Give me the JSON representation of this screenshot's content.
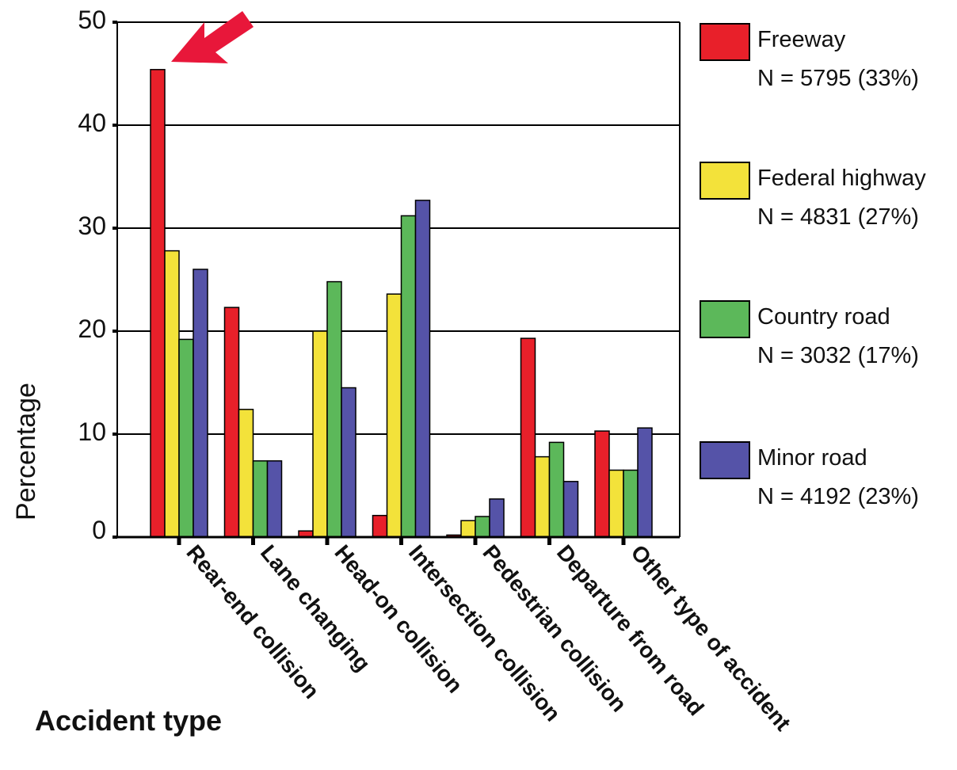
{
  "chart_data": {
    "type": "bar",
    "ylabel": "Percentage",
    "xlabel": "Accident type",
    "ylim": [
      0,
      50
    ],
    "yticks": [
      0,
      10,
      20,
      30,
      40,
      50
    ],
    "ytick_labels": [
      "0",
      "10",
      "20",
      "30",
      "40",
      "50"
    ],
    "grid": true,
    "legend_position": "right",
    "categories": [
      "Rear-end collision",
      "Lane changing",
      "Head-on collision",
      "Intersection collision",
      "Pedestrian collision",
      "Departure from road",
      "Other type of accident"
    ],
    "series": [
      {
        "name": "Freeway",
        "detail": "N = 5795 (33%)",
        "color": "#e8202a",
        "values": [
          45.4,
          22.3,
          0.6,
          2.1,
          0.2,
          19.3,
          10.3
        ]
      },
      {
        "name": "Federal highway",
        "detail": "N = 4831 (27%)",
        "color": "#f3e23a",
        "values": [
          27.8,
          12.4,
          20.0,
          23.6,
          1.6,
          7.8,
          6.5
        ]
      },
      {
        "name": "Country road",
        "detail": "N = 3032 (17%)",
        "color": "#5cb85a",
        "values": [
          19.2,
          7.4,
          24.8,
          31.2,
          2.0,
          9.2,
          6.5
        ]
      },
      {
        "name": "Minor road",
        "detail": "N = 4192 (23%)",
        "color": "#5553a8",
        "values": [
          26.0,
          7.4,
          14.5,
          32.7,
          3.7,
          5.4,
          10.6
        ]
      }
    ],
    "annotation": {
      "type": "arrow",
      "color": "#e8173a",
      "target_series": "Freeway",
      "target_category": "Rear-end collision"
    }
  }
}
